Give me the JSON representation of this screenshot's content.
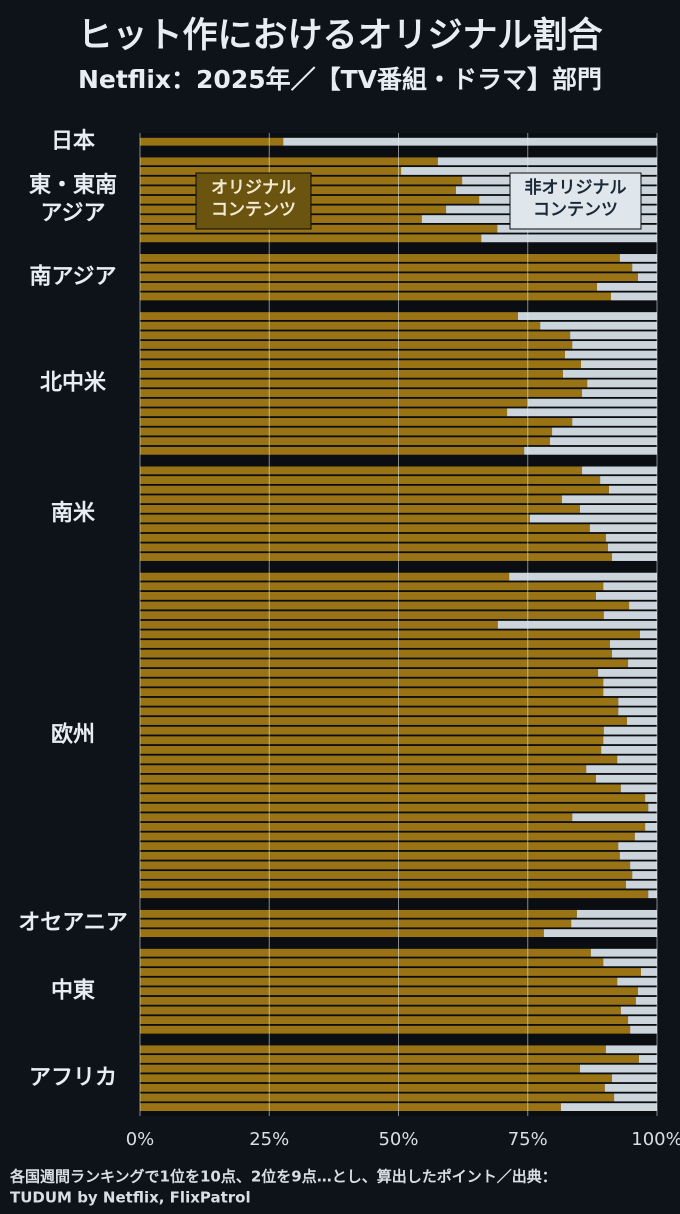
{
  "chart_data": {
    "type": "bar",
    "orientation": "horizontal",
    "stacked": true,
    "title": "ヒット作におけるオリジナル割合",
    "subtitle": "Netflix：2025年／【TV番組・ドラマ】部門",
    "xlim": [
      0,
      100
    ],
    "xticks": [
      {
        "value": 0,
        "label": "0%"
      },
      {
        "value": 25,
        "label": "25%"
      },
      {
        "value": 50,
        "label": "50%"
      },
      {
        "value": 75,
        "label": "75%"
      },
      {
        "value": 100,
        "label": "100%"
      }
    ],
    "grid": true,
    "series": [
      {
        "name": [
          "オリジナル",
          "コンテンツ"
        ],
        "color": "#9a7414"
      },
      {
        "name": [
          "非オリジナル",
          "コンテンツ"
        ],
        "color": "#cdd5dc"
      }
    ],
    "groups": [
      {
        "label": [
          "日本"
        ],
        "values": [
          [
            27.7
          ],
          [
            72.3
          ]
        ]
      },
      {
        "label": [
          "東・東南",
          "アジア"
        ],
        "values": [
          [
            57.6,
            50.5,
            62.3,
            61.1,
            65.6,
            59.2,
            54.5,
            69.1,
            66.0
          ],
          [
            42.4,
            49.5,
            37.7,
            38.9,
            34.4,
            40.8,
            45.5,
            30.9,
            34.0
          ]
        ]
      },
      {
        "label": [
          "南アジア"
        ],
        "values": [
          [
            92.8,
            95.2,
            96.3,
            88.4,
            91.1
          ],
          [
            7.2,
            4.8,
            3.7,
            11.6,
            8.9
          ]
        ]
      },
      {
        "label": [
          "北中米"
        ],
        "values": [
          [
            73.1,
            77.4,
            83.2,
            83.6,
            82.2,
            85.3,
            81.8,
            86.5,
            85.5,
            75.0,
            71.0,
            83.6,
            79.7,
            79.3,
            74.3
          ],
          [
            26.9,
            22.6,
            16.8,
            16.4,
            17.8,
            14.7,
            18.2,
            13.5,
            14.5,
            25.0,
            29.0,
            16.4,
            20.3,
            20.7,
            25.7
          ]
        ]
      },
      {
        "label": [
          "南米"
        ],
        "values": [
          [
            85.5,
            89.0,
            90.7,
            81.6,
            85.1,
            75.4,
            87.0,
            90.1,
            90.5,
            91.3
          ],
          [
            14.5,
            11.0,
            9.3,
            18.4,
            14.9,
            24.6,
            13.0,
            9.9,
            9.5,
            8.7
          ]
        ]
      },
      {
        "label": [
          "欧州"
        ],
        "values": [
          [
            71.4,
            89.6,
            88.2,
            94.6,
            89.7,
            69.2,
            96.7,
            90.9,
            91.3,
            94.4,
            88.6,
            89.6,
            89.6,
            92.5,
            92.5,
            94.2,
            89.7,
            89.6,
            89.2,
            92.3,
            86.3,
            88.2,
            93.0,
            97.7,
            98.3,
            83.6,
            97.7,
            95.7,
            92.5,
            92.8,
            94.8,
            95.2,
            94.0,
            98.3
          ],
          [
            28.6,
            10.4,
            11.8,
            5.4,
            10.3,
            30.8,
            3.3,
            9.1,
            8.7,
            5.6,
            11.4,
            10.4,
            10.4,
            7.5,
            7.5,
            5.8,
            10.3,
            10.4,
            10.8,
            7.7,
            13.7,
            11.8,
            7.0,
            2.3,
            1.7,
            16.4,
            2.3,
            4.3,
            7.5,
            7.2,
            5.2,
            4.8,
            6.0,
            1.7
          ]
        ]
      },
      {
        "label": [
          "オセアニア"
        ],
        "values": [
          [
            84.5,
            83.4,
            78.1
          ],
          [
            15.5,
            16.6,
            21.9
          ]
        ]
      },
      {
        "label": [
          "中東"
        ],
        "values": [
          [
            87.2,
            89.6,
            96.9,
            92.3,
            96.3,
            95.9,
            93.0,
            94.4,
            94.8
          ],
          [
            12.8,
            10.4,
            3.1,
            7.7,
            3.7,
            4.1,
            7.0,
            5.6,
            5.2
          ]
        ]
      },
      {
        "label": [
          "アフリカ"
        ],
        "values": [
          [
            90.1,
            96.5,
            85.1,
            91.3,
            89.9,
            91.7,
            81.4
          ],
          [
            9.9,
            3.5,
            14.9,
            8.7,
            10.1,
            8.3,
            18.6
          ]
        ]
      }
    ],
    "note": [
      "各国週間ランキングで1位を10点、2位を9点…とし、算出したポイント／出典：",
      "TUDUM by Netflix, FlixPatrol"
    ]
  }
}
